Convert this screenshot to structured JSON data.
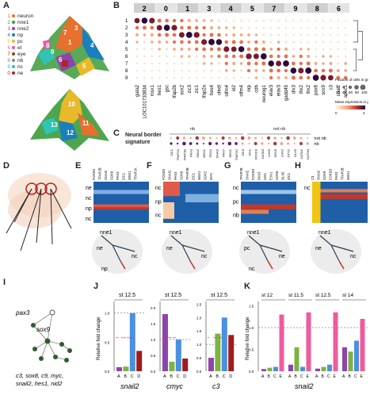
{
  "panels": {
    "A": "A",
    "B": "B",
    "C": "C",
    "D": "D",
    "E": "E",
    "F": "F",
    "G": "G",
    "H": "H",
    "I": "I",
    "J": "J",
    "K": "K"
  },
  "panelA": {
    "clusters": [
      {
        "num": "1",
        "name": "neuron",
        "color": "#e86f2e"
      },
      {
        "num": "2",
        "name": "nne1",
        "color": "#3b9b3b"
      },
      {
        "num": "3",
        "name": "nne2",
        "color": "#8e44ad"
      },
      {
        "num": "4",
        "name": "np",
        "color": "#1a7fbf"
      },
      {
        "num": "5",
        "name": "pc",
        "color": "#e8b92a"
      },
      {
        "num": "6",
        "name": "et",
        "color": "#e85aa6"
      },
      {
        "num": "7",
        "name": "eye",
        "color": "#8b4513"
      },
      {
        "num": "8",
        "name": "nb",
        "color": "#888888"
      },
      {
        "num": "9",
        "name": "nc",
        "color": "#2ec4b6"
      },
      {
        "num": "0",
        "name": "ne",
        "color": "#b22222"
      }
    ],
    "umap_top_labels": [
      "7",
      "3",
      "1",
      "9",
      "8",
      "4",
      "6",
      "5"
    ],
    "umap_bottom_labels": [
      "10",
      "11",
      "12",
      "13"
    ]
  },
  "panelB": {
    "top_clusters": [
      "2",
      "0",
      "1",
      "3",
      "4",
      "5",
      "7",
      "9",
      "8",
      "6"
    ],
    "rows": [
      "1",
      "2",
      "3",
      "4",
      "5",
      "6",
      "7",
      "8",
      "9"
    ],
    "genes": [
      "gata2",
      "LOC101733834",
      "msx1",
      "hes1",
      "gsc",
      "tfap2b",
      "sox2",
      "zic3",
      "zic1",
      "tfap2a",
      "hes4",
      "chrdl",
      "olfm4",
      "id2",
      "olfm4",
      "nrp",
      "cdh",
      "neurog1",
      "elav3",
      "elav3",
      "gadd45",
      "dlx3",
      "lhx2",
      "lhx2",
      "pax6",
      "sox9",
      "c3",
      "snai2",
      "apoc1"
    ],
    "legend_title": "Fraction of cells in group (%)",
    "legend_values": [
      "20",
      "40",
      "60",
      "80",
      "100"
    ],
    "color_title": "Mean expression in group",
    "color_min": "0",
    "color_max": "4",
    "dendro_label": ""
  },
  "panelC": {
    "title": "Neural border signature",
    "group_nb": "nb",
    "group_not_nb": "not nb",
    "row1": "not nb",
    "row2": "nb",
    "genes": [
      "ZIC1",
      "TFAP2A",
      "TFAP2B",
      "PAX3",
      "GBX2",
      "MSX1",
      "SOX2",
      "SNAI2",
      "PAX7",
      "HES1",
      "TFAP2C",
      "ZIC3",
      "SIX1",
      "FOXD3",
      "GATA3",
      "LHX5",
      "SOX9",
      "LHX2",
      "OTX2",
      "DLX5",
      "GATA2",
      "OLFM4"
    ]
  },
  "panelE": {
    "rows": [
      "ne",
      "nc",
      "np",
      "nc"
    ],
    "genes": [
      "FOXD3",
      "TFAP2B",
      "SNAI2",
      "SOX9",
      "PAX3",
      "ZIC1",
      "MSX1",
      "TFAP2A"
    ],
    "traj_labels": [
      "nne1",
      "ne",
      "nc",
      "np"
    ]
  },
  "panelF": {
    "rows": [
      "nc",
      "np",
      "nc"
    ],
    "genes": [
      "FOXD3",
      "SNAI2",
      "PAX3",
      "SOX9",
      "TFAP2B",
      "ZIC1",
      "MSX1",
      "SOX2",
      "MYC"
    ],
    "traj_labels": [
      "nne1",
      "ne",
      "nc"
    ]
  },
  "panelG": {
    "rows": [
      "nc",
      "pc",
      "nb"
    ],
    "genes": [
      "TFAP2B",
      "SNAI2",
      "FOXD3",
      "PAX3",
      "SIX1",
      "EYA1",
      "SOX9",
      "DLX5",
      "ZIC1"
    ],
    "traj_labels": [
      "nne1",
      "pc",
      "ne",
      "nc"
    ]
  },
  "panelH": {
    "rows": [
      "nc"
    ],
    "genes": [
      "C3",
      "SNAI2",
      "SOX9",
      "FOXD3",
      "PAX3",
      "TFAP2B",
      "MSX1"
    ],
    "traj_labels": [
      "nne1",
      "ne",
      "nc"
    ]
  },
  "panelI": {
    "labels": [
      "pax3",
      "sox9",
      "c3, sox8, c9, myc,",
      "snail2, hes1, nid2"
    ]
  },
  "panelJ": {
    "ylabel": "Relative fold change",
    "charts": [
      {
        "stage": "st 12.5",
        "gene": "snail2",
        "cats": [
          "A",
          "B",
          "C",
          "D"
        ],
        "values": [
          0.07,
          0.08,
          1.0,
          0.35
        ],
        "ymax": 1.2,
        "ticks": [
          "0.0",
          "0.5",
          "1.0"
        ],
        "sig": [
          "**",
          "***",
          "****"
        ]
      },
      {
        "stage": "st 12.5",
        "gene": "cmyc",
        "cats": [
          "A",
          "B",
          "C",
          "D"
        ],
        "values": [
          1.8,
          0.3,
          1.0,
          0.4
        ],
        "ymax": 2.2,
        "ticks": [
          "0.0",
          "0.5",
          "1.0",
          "1.5",
          "2.0"
        ],
        "sig": [
          "**",
          "***",
          "**"
        ]
      },
      {
        "stage": "st 12.5",
        "gene": "c3",
        "cats": [
          "A",
          "B",
          "C",
          "D"
        ],
        "values": [
          0.5,
          1.4,
          2.0,
          1.35
        ],
        "ymax": 2.6,
        "ticks": [
          "0.0",
          "0.5",
          "1.0",
          "1.5",
          "2.0",
          "2.5"
        ],
        "sig": [
          "*",
          "**",
          "**"
        ]
      }
    ]
  },
  "panelK": {
    "ylabel": "Relative fold change",
    "gene": "snail2",
    "stages": [
      "st 12",
      "st 11.5",
      "st 12.5",
      "st 14"
    ],
    "groups": [
      {
        "cats": [
          "A",
          "B",
          "C",
          "E"
        ],
        "values": [
          0.05,
          0.08,
          0.1,
          1.3
        ]
      },
      {
        "cats": [
          "A",
          "B",
          "C",
          "E"
        ],
        "values": [
          0.15,
          0.55,
          0.1,
          1.35
        ]
      },
      {
        "cats": [
          "A",
          "B",
          "C",
          "E"
        ],
        "values": [
          0.06,
          0.1,
          0.15,
          1.35
        ]
      },
      {
        "cats": [
          "A",
          "B",
          "C",
          "E"
        ],
        "values": [
          0.55,
          0.45,
          0.7,
          1.2
        ]
      }
    ],
    "ticks": [
      "0.0",
      "0.5",
      "1.0",
      "1.5"
    ]
  },
  "colors": {
    "purple": "#8e44ad",
    "green": "#7cb342",
    "blue": "#4a90e2",
    "darkred": "#a01c1c",
    "pink": "#ef5b9c",
    "red": "#e53935"
  }
}
